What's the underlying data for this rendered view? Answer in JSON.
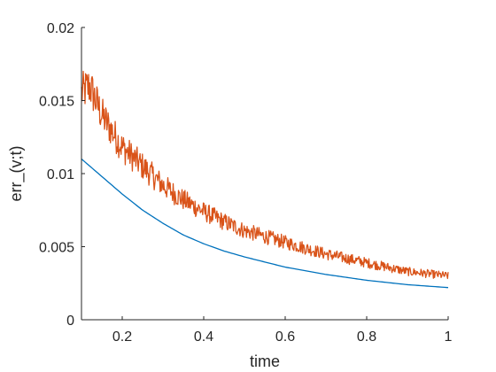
{
  "chart_data": {
    "type": "line",
    "title": "",
    "xlabel": "time",
    "ylabel": "err_(v;t)",
    "xlim": [
      0.1,
      1
    ],
    "ylim": [
      0,
      0.02
    ],
    "xticks": [
      0.2,
      0.4,
      0.6,
      0.8,
      1
    ],
    "xtick_labels": [
      "0.2",
      "0.4",
      "0.6",
      "0.8",
      "1"
    ],
    "yticks": [
      0,
      0.005,
      0.01,
      0.015,
      0.02
    ],
    "ytick_labels": [
      "0",
      "0.005",
      "0.01",
      "0.015",
      "0.02"
    ],
    "grid": false,
    "legend": "none",
    "series": [
      {
        "color": "#0072BD",
        "style": "smooth",
        "x": [
          0.1,
          0.15,
          0.2,
          0.25,
          0.3,
          0.35,
          0.4,
          0.45,
          0.5,
          0.6,
          0.7,
          0.8,
          0.9,
          1.0
        ],
        "values": [
          0.011,
          0.0098,
          0.0086,
          0.0075,
          0.0066,
          0.0058,
          0.0052,
          0.0047,
          0.0043,
          0.0036,
          0.0031,
          0.0027,
          0.0024,
          0.0022
        ]
      },
      {
        "color": "#D95319",
        "style": "noisy",
        "x": [
          0.1,
          0.12,
          0.15,
          0.2,
          0.25,
          0.3,
          0.35,
          0.4,
          0.45,
          0.5,
          0.55,
          0.6,
          0.7,
          0.8,
          0.9,
          1.0
        ],
        "values": [
          0.0155,
          0.016,
          0.014,
          0.0118,
          0.0105,
          0.0092,
          0.0082,
          0.0074,
          0.0067,
          0.0061,
          0.0057,
          0.0053,
          0.0045,
          0.0039,
          0.0033,
          0.003
        ]
      }
    ]
  }
}
